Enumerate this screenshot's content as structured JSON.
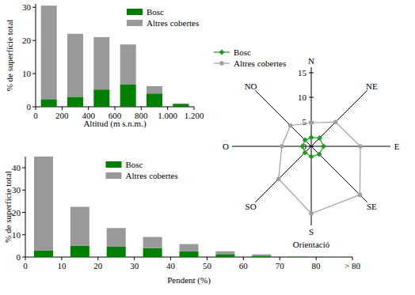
{
  "chart_data": [
    {
      "type": "bar",
      "stacked": true,
      "x": [
        100,
        300,
        500,
        700,
        900,
        1100
      ],
      "series": [
        {
          "name": "Bosc",
          "color": "#008000",
          "values": [
            2.3,
            3,
            5.2,
            6.8,
            4,
            0.9
          ]
        },
        {
          "name": "Altres cobertes",
          "color": "#999999",
          "values": [
            28.2,
            19,
            15.8,
            12,
            2.2,
            0.1
          ]
        }
      ],
      "xlim": [
        0,
        1200
      ],
      "xticks": [
        0,
        200,
        400,
        600,
        800,
        {
          "value": 1000,
          "label": "1.000"
        },
        {
          "value": 1200,
          "label": "1.200"
        }
      ],
      "ylim": [
        0,
        31
      ],
      "yticks": [
        0,
        10,
        20,
        30
      ],
      "x_label": "Altitud (m s.n.m.)",
      "y_label": "% de superfície total",
      "legend": "upper right"
    },
    {
      "type": "bar",
      "stacked": true,
      "x": [
        5,
        15,
        25,
        35,
        45,
        55,
        65,
        75,
        85
      ],
      "series": [
        {
          "name": "Bosc",
          "color": "#008000",
          "values": [
            3,
            5,
            4.8,
            4,
            2.5,
            1.3,
            0.6,
            0.2,
            0.1
          ]
        },
        {
          "name": "Altres cobertes",
          "color": "#999999",
          "values": [
            42,
            17.5,
            8.2,
            5,
            3.3,
            1.3,
            0.6,
            0.2,
            0.2
          ]
        }
      ],
      "xlim": [
        0,
        90
      ],
      "xticks": [
        0,
        10,
        20,
        30,
        40,
        50,
        60,
        70,
        80,
        {
          "value": 90,
          "label": "> 80"
        }
      ],
      "ylim": [
        0,
        45
      ],
      "yticks": [
        0,
        10,
        20,
        30,
        40
      ],
      "x_label": "Pendent (%)",
      "y_label": "% de superfície total",
      "legend": "upper center"
    },
    {
      "type": "radar",
      "categories": [
        "N",
        "NE",
        "E",
        "SE",
        "S",
        "SO",
        "O",
        "NO"
      ],
      "series": [
        {
          "name": "Bosc",
          "color": "#1f9a1f",
          "marker": "diamond",
          "values": [
            1.8,
            2.4,
            2.5,
            2.3,
            2.1,
            1.8,
            1.8,
            1.8
          ]
        },
        {
          "name": "Altres cobertes",
          "color": "#a0a0a0",
          "marker": "circle",
          "values": [
            4.8,
            7,
            10,
            14,
            13.7,
            9.4,
            6,
            6
          ]
        }
      ],
      "ylim": [
        0,
        15
      ],
      "yticks": [
        0,
        5,
        10,
        15
      ],
      "x_label": "Orientació",
      "legend": "upper left"
    }
  ]
}
